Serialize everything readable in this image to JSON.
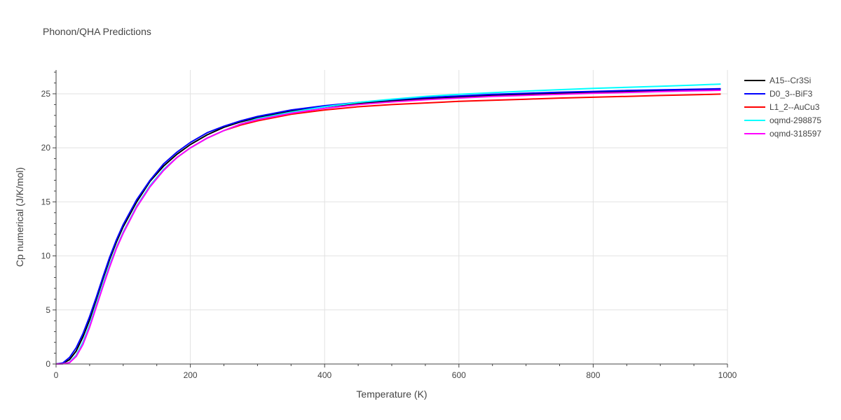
{
  "chart_data": {
    "type": "line",
    "title": "Phonon/QHA Predictions",
    "xlabel": "Temperature (K)",
    "ylabel": "Cp numerical (J/K/mol)",
    "xlim": [
      0,
      1000
    ],
    "ylim": [
      0,
      27.2
    ],
    "xticks": [
      0,
      200,
      400,
      600,
      800,
      1000
    ],
    "yticks": [
      0,
      5,
      10,
      15,
      20,
      25
    ],
    "grid": true,
    "legend_position": "top-right",
    "series": [
      {
        "name": "A15--Cr3Si",
        "color": "#000000",
        "x": [
          0,
          10,
          20,
          30,
          40,
          50,
          60,
          70,
          80,
          90,
          100,
          120,
          140,
          160,
          180,
          200,
          225,
          250,
          275,
          300,
          350,
          400,
          450,
          500,
          550,
          600,
          650,
          700,
          750,
          800,
          850,
          900,
          950,
          990
        ],
        "y": [
          0,
          0.05,
          0.4,
          1.2,
          2.5,
          4.1,
          6.0,
          7.9,
          9.7,
          11.3,
          12.7,
          15.0,
          16.9,
          18.3,
          19.4,
          20.3,
          21.2,
          21.9,
          22.4,
          22.8,
          23.4,
          23.8,
          24.1,
          24.35,
          24.55,
          24.7,
          24.85,
          24.95,
          25.05,
          25.15,
          25.22,
          25.3,
          25.37,
          25.42
        ]
      },
      {
        "name": "D0_3--BiF3",
        "color": "#0000ff",
        "x": [
          0,
          10,
          20,
          30,
          40,
          50,
          60,
          70,
          80,
          90,
          100,
          120,
          140,
          160,
          180,
          200,
          225,
          250,
          275,
          300,
          350,
          400,
          450,
          500,
          550,
          600,
          650,
          700,
          750,
          800,
          850,
          900,
          950,
          990
        ],
        "y": [
          0,
          0.1,
          0.6,
          1.5,
          2.8,
          4.4,
          6.2,
          8.1,
          9.9,
          11.5,
          12.9,
          15.2,
          17.0,
          18.5,
          19.6,
          20.5,
          21.4,
          22.0,
          22.5,
          22.9,
          23.5,
          23.9,
          24.2,
          24.45,
          24.65,
          24.8,
          24.95,
          25.05,
          25.15,
          25.22,
          25.3,
          25.36,
          25.42,
          25.47
        ]
      },
      {
        "name": "L1_2--AuCu3",
        "color": "#ff0000",
        "x": [
          0,
          10,
          20,
          30,
          40,
          50,
          60,
          70,
          80,
          90,
          100,
          120,
          140,
          160,
          180,
          200,
          225,
          250,
          275,
          300,
          350,
          400,
          450,
          500,
          550,
          600,
          650,
          700,
          750,
          800,
          850,
          900,
          950,
          990
        ],
        "y": [
          0,
          0.02,
          0.15,
          0.8,
          2.0,
          3.6,
          5.5,
          7.4,
          9.2,
          10.8,
          12.2,
          14.6,
          16.5,
          18.0,
          19.1,
          20.0,
          20.9,
          21.6,
          22.1,
          22.5,
          23.1,
          23.5,
          23.8,
          24.0,
          24.15,
          24.3,
          24.4,
          24.5,
          24.6,
          24.68,
          24.76,
          24.84,
          24.91,
          24.97
        ]
      },
      {
        "name": "oqmd-298875",
        "color": "#00ffff",
        "x": [
          0,
          10,
          20,
          30,
          40,
          50,
          60,
          70,
          80,
          90,
          100,
          120,
          140,
          160,
          180,
          200,
          225,
          250,
          275,
          300,
          350,
          400,
          450,
          500,
          550,
          600,
          650,
          700,
          750,
          800,
          850,
          900,
          950,
          990
        ],
        "y": [
          0,
          0.02,
          0.15,
          0.8,
          2.0,
          3.6,
          5.5,
          7.4,
          9.2,
          10.8,
          12.2,
          14.6,
          16.5,
          18.0,
          19.1,
          20.0,
          20.9,
          21.6,
          22.2,
          22.7,
          23.3,
          23.8,
          24.2,
          24.5,
          24.75,
          24.95,
          25.1,
          25.25,
          25.38,
          25.5,
          25.6,
          25.7,
          25.8,
          25.9
        ]
      },
      {
        "name": "oqmd-318597",
        "color": "#ff00ff",
        "x": [
          0,
          10,
          20,
          30,
          40,
          50,
          60,
          70,
          80,
          90,
          100,
          120,
          140,
          160,
          180,
          200,
          225,
          250,
          275,
          300,
          350,
          400,
          450,
          500,
          550,
          600,
          650,
          700,
          750,
          800,
          850,
          900,
          950,
          990
        ],
        "y": [
          0,
          0.02,
          0.12,
          0.7,
          1.8,
          3.4,
          5.3,
          7.2,
          9.0,
          10.7,
          12.1,
          14.5,
          16.4,
          17.9,
          19.1,
          20.0,
          20.9,
          21.6,
          22.2,
          22.6,
          23.2,
          23.65,
          24.0,
          24.25,
          24.45,
          24.6,
          24.75,
          24.85,
          24.95,
          25.05,
          25.12,
          25.2,
          25.27,
          25.32
        ]
      }
    ]
  }
}
